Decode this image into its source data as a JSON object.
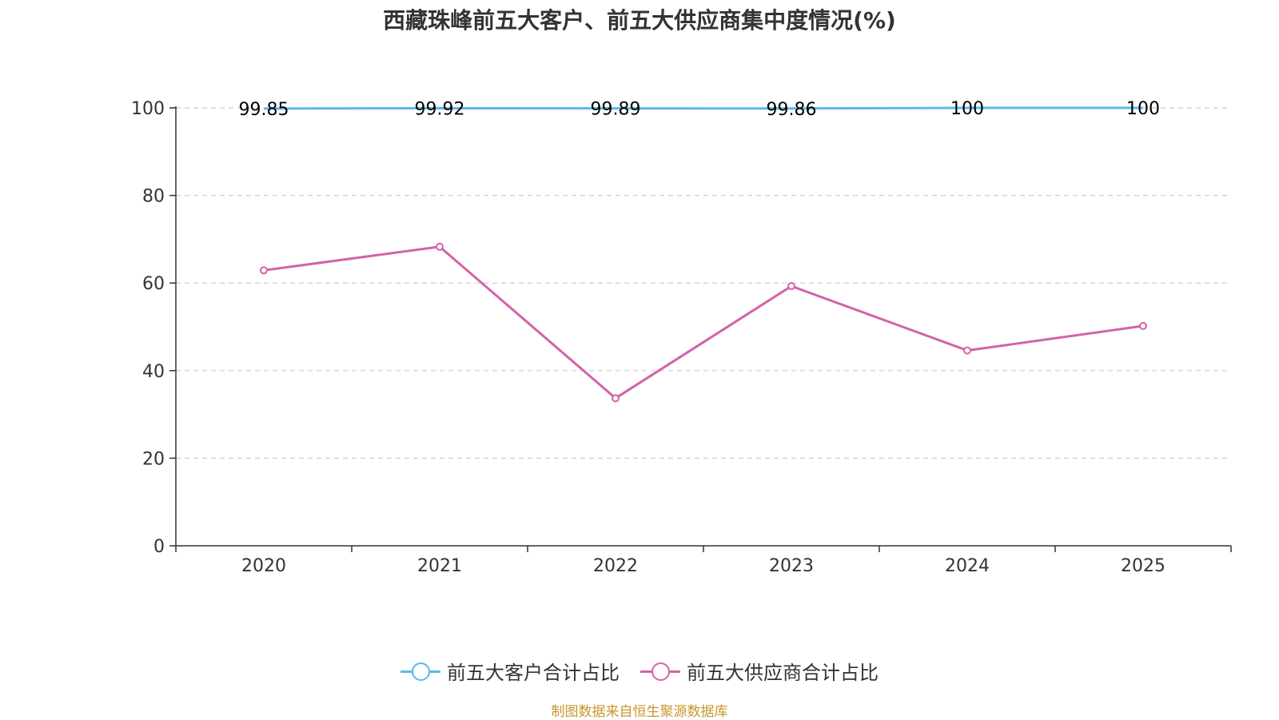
{
  "title": "西藏珠峰前五大客户、前五大供应商集中度情况(%)",
  "source": "制图数据来自恒生聚源数据库",
  "chart_data": {
    "type": "line",
    "title": "西藏珠峰前五大客户、前五大供应商集中度情况(%)",
    "categories": [
      "2020",
      "2021",
      "2022",
      "2023",
      "2024",
      "2025"
    ],
    "yticks": [
      "0",
      "20",
      "40",
      "60",
      "80",
      "100"
    ],
    "ylim": [
      0,
      100
    ],
    "grid": true,
    "legend_position": "bottom",
    "series": [
      {
        "name": "前五大客户合计占比",
        "color": "#5bb8ec",
        "values": [
          99.85,
          99.92,
          99.89,
          99.86,
          100,
          100
        ],
        "labels": [
          "99.85",
          "99.92",
          "99.89",
          "99.86",
          "100",
          "100"
        ],
        "show_labels": true
      },
      {
        "name": "前五大供应商合计占比",
        "color": "#d462a8",
        "values": [
          62.9,
          68.3,
          33.7,
          59.3,
          44.6,
          50.2
        ],
        "show_labels": false
      }
    ]
  }
}
